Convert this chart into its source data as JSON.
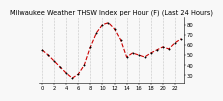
{
  "title": "Milwaukee Weather THSW Index per Hour (F) (Last 24 Hours)",
  "hours": [
    0,
    1,
    2,
    3,
    4,
    5,
    6,
    7,
    8,
    9,
    10,
    11,
    12,
    13,
    14,
    15,
    16,
    17,
    18,
    19,
    20,
    21,
    22,
    23
  ],
  "values": [
    55,
    50,
    44,
    38,
    32,
    27,
    31,
    40,
    58,
    72,
    80,
    82,
    76,
    65,
    48,
    52,
    50,
    48,
    52,
    55,
    58,
    56,
    62,
    66
  ],
  "line_color": "#cc0000",
  "marker_color": "#000000",
  "background_color": "#f8f8f8",
  "grid_color": "#999999",
  "ylim": [
    22,
    88
  ],
  "yticks": [
    30,
    40,
    50,
    60,
    70,
    80
  ],
  "xlim": [
    -0.5,
    23.5
  ],
  "title_fontsize": 4.8,
  "tick_fontsize": 3.8,
  "ytick_fontsize": 3.8,
  "line_width": 0.8,
  "marker_size": 2.0
}
